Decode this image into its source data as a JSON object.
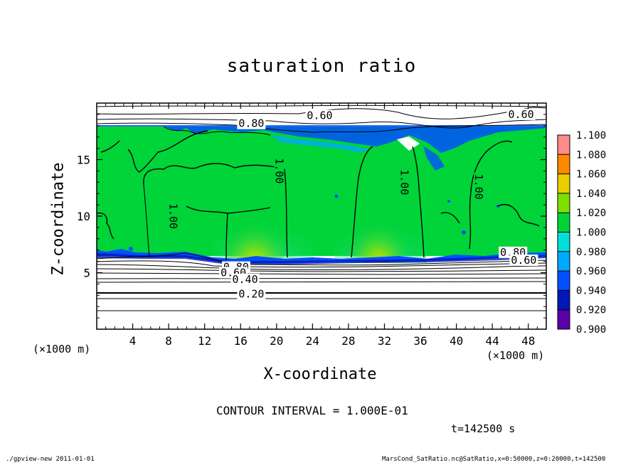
{
  "footer": {
    "left": "./gpview-new  2011-01-01",
    "right": "MarsCond_SatRatio.nc@SatRatio,x=0:50000,z=0:20000,t=142500"
  },
  "annotations": {
    "contour_interval": "CONTOUR INTERVAL = 1.000E-01",
    "time": "t=142500 s",
    "x_unit": "(×1000 m)",
    "y_unit": "(×1000 m)"
  },
  "chart_data": {
    "type": "heatmap",
    "title": "saturation ratio",
    "xlabel": "X-coordinate",
    "ylabel": "Z-coordinate",
    "xlim": [
      0,
      50
    ],
    "ylim": [
      0,
      20
    ],
    "x_ticks": [
      4,
      8,
      12,
      16,
      20,
      24,
      28,
      32,
      36,
      40,
      44,
      48
    ],
    "y_ticks": [
      5,
      10,
      15
    ],
    "colorbar": {
      "levels": [
        "0.900",
        "0.920",
        "0.940",
        "0.960",
        "0.980",
        "1.000",
        "1.020",
        "1.040",
        "1.060",
        "1.080",
        "1.100"
      ],
      "colors": [
        "#5a00a8",
        "#0018b8",
        "#0050ff",
        "#00a8ff",
        "#00e0d8",
        "#00d438",
        "#7ee000",
        "#e8d000",
        "#ff8800",
        "#ff2a00",
        "#ff8a8a"
      ]
    },
    "contour_labels": [
      {
        "text": "0.60",
        "x": 24.8,
        "z": 18.9
      },
      {
        "text": "0.60",
        "x": 47.2,
        "z": 19.0
      },
      {
        "text": "0.80",
        "x": 17.2,
        "z": 18.2
      },
      {
        "text": "1.00",
        "x": 8.5,
        "z": 10.0
      },
      {
        "text": "1.00",
        "x": 20.3,
        "z": 14.0
      },
      {
        "text": "1.00",
        "x": 34.2,
        "z": 13.0
      },
      {
        "text": "1.00",
        "x": 42.5,
        "z": 12.6
      },
      {
        "text": "0.80",
        "x": 15.5,
        "z": 5.5
      },
      {
        "text": "0.60",
        "x": 15.2,
        "z": 5.0
      },
      {
        "text": "0.40",
        "x": 16.5,
        "z": 4.4
      },
      {
        "text": "0.20",
        "x": 17.2,
        "z": 3.1
      },
      {
        "text": "0.80",
        "x": 46.3,
        "z": 6.8
      },
      {
        "text": "0.60",
        "x": 47.5,
        "z": 6.1
      }
    ],
    "regions": {
      "saturated_layer_z": [
        6.3,
        18.0
      ],
      "upper_subsaturated_z": [
        18.0,
        20.0
      ],
      "lower_subsaturated_z": [
        0,
        6.3
      ],
      "updraft_columns": [
        {
          "x": [
            15,
            21.5
          ]
        },
        {
          "x": [
            28.5,
            34
          ]
        }
      ]
    }
  }
}
